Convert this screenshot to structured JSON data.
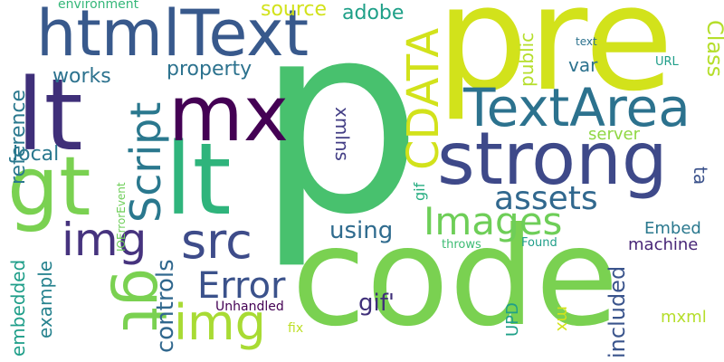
{
  "words": [
    {
      "text": "p",
      "color": "#48c16e"
    },
    {
      "text": "code",
      "color": "#7ad151"
    },
    {
      "text": "pre",
      "color": "#d2e21b"
    },
    {
      "text": "strong",
      "color": "#3e4989"
    },
    {
      "text": "lt",
      "color": "#3f2f79"
    },
    {
      "text": "lt",
      "color": "#2fb47c"
    },
    {
      "text": "htmlText",
      "color": "#38598c"
    },
    {
      "text": "gt",
      "color": "#7ad151"
    },
    {
      "text": "mx",
      "color": "#440154"
    },
    {
      "text": "TextArea",
      "color": "#2c728e"
    },
    {
      "text": "Images",
      "color": "#6ece58"
    },
    {
      "text": "src",
      "color": "#3e4c8a"
    },
    {
      "text": "img",
      "color": "#46337e"
    },
    {
      "text": "img",
      "color": "#a8db34"
    },
    {
      "text": "gt",
      "color": "#7ad151"
    },
    {
      "text": "CDATA",
      "color": "#d2e21b"
    },
    {
      "text": "Script",
      "color": "#2a788e"
    },
    {
      "text": "Error",
      "color": "#3b528b"
    },
    {
      "text": "assets",
      "color": "#31688e"
    },
    {
      "text": "controls",
      "color": "#31688e"
    },
    {
      "text": "using",
      "color": "#2f6b8e"
    },
    {
      "text": "gif'",
      "color": "#3f2f79"
    },
    {
      "text": "included",
      "color": "#3a548c"
    },
    {
      "text": "Class",
      "color": "#b5de2b"
    },
    {
      "text": "property",
      "color": "#2c728e"
    },
    {
      "text": "source",
      "color": "#d2e21b"
    },
    {
      "text": "adobe",
      "color": "#1fa088"
    },
    {
      "text": "works",
      "color": "#2c728e"
    },
    {
      "text": "reference",
      "color": "#2a788e"
    },
    {
      "text": "embedded",
      "color": "#1f9e89"
    },
    {
      "text": "example",
      "color": "#26828e"
    },
    {
      "text": "local",
      "color": "#2a788e"
    },
    {
      "text": "xmlns",
      "color": "#433e85"
    },
    {
      "text": "public",
      "color": "#b5de2b"
    },
    {
      "text": "var",
      "color": "#2c728e"
    },
    {
      "text": "ta",
      "color": "#3b528b"
    },
    {
      "text": "server",
      "color": "#8fd744"
    },
    {
      "text": "Embed",
      "color": "#2a788e"
    },
    {
      "text": "machine",
      "color": "#482677"
    },
    {
      "text": "UPD",
      "color": "#1fa088"
    },
    {
      "text": "mxml",
      "color": "#b5de2b"
    },
    {
      "text": "mx",
      "color": "#d2e21b"
    },
    {
      "text": "gif",
      "color": "#26ad81"
    },
    {
      "text": "environment",
      "color": "#35b779"
    },
    {
      "text": "text",
      "color": "#2c728e"
    },
    {
      "text": "URL",
      "color": "#1f9e89"
    },
    {
      "text": "IOErrorEvent",
      "color": "#6ece58"
    },
    {
      "text": "throws",
      "color": "#3dbc74"
    },
    {
      "text": "Found",
      "color": "#1f9e89"
    },
    {
      "text": "Unhandled",
      "color": "#440154"
    },
    {
      "text": "fix",
      "color": "#bddf26"
    }
  ]
}
